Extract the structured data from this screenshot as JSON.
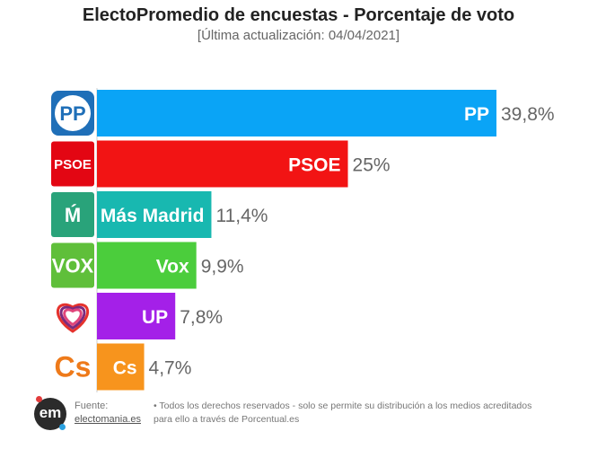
{
  "title": "ElectoPromedio de encuestas - Porcentaje de voto",
  "subtitle": "[Última actualización: 04/04/2021]",
  "chart_data": {
    "type": "bar",
    "orientation": "horizontal",
    "categories": [
      "PP",
      "PSOE",
      "Más Madrid",
      "Vox",
      "UP",
      "Cs"
    ],
    "values": [
      39.8,
      25,
      11.4,
      9.9,
      7.8,
      4.7
    ],
    "value_labels": [
      "39,8%",
      "25%",
      "11,4%",
      "9,9%",
      "7,8%",
      "4,7%"
    ],
    "colors": [
      "#0aa4f6",
      "#f21414",
      "#18b8b0",
      "#4bcd3c",
      "#a420e8",
      "#f7941d"
    ],
    "logo_colors": [
      "#1f6fb8",
      "#e30613",
      "#29a37a",
      "#5fbf3a",
      "#7b2a7e",
      "#ee7a1a"
    ],
    "logo_texts": [
      "PP",
      "PSOE",
      "Ḿ",
      "VOX",
      "",
      "Cs"
    ],
    "logo_icons": [
      "pp-logo-icon",
      "psoe-logo-icon",
      "mas-madrid-logo-icon",
      "vox-logo-icon",
      "up-heart-logo-icon",
      "cs-logo-icon"
    ],
    "xlim": [
      0,
      45
    ],
    "grid": false,
    "legend": "none"
  },
  "footer": {
    "source_label": "Fuente:",
    "source_link": "electomania.es",
    "rights_line1": "• Todos los derechos reservados - solo se permite su distribución a los medios acreditados",
    "rights_line2": "para ello a través de Porcentual.es",
    "logo_text": "em"
  }
}
